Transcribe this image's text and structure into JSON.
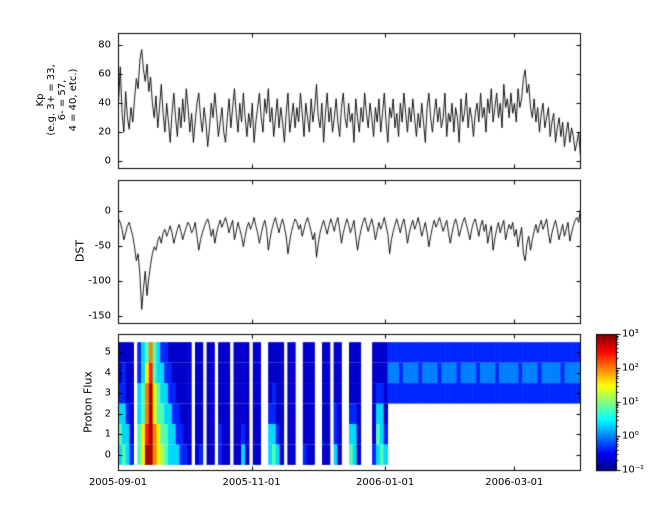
{
  "figure": {
    "background": "#ffffff",
    "line_color": "#000000"
  },
  "xaxis": {
    "range_days": [
      0,
      211
    ],
    "tick_days": [
      0,
      61,
      122,
      181
    ],
    "tick_labels": [
      "2005-09-01",
      "2005-11-01",
      "2006-01-01",
      "2006-03-01"
    ],
    "xlabel": ""
  },
  "chart_data": [
    {
      "id": "kp",
      "type": "line",
      "ylabel_lines": [
        "Kp",
        "(e.g. 3+ = 33,",
        "6- = 57,",
        "4 = 40, etc.)"
      ],
      "ylabel": "Kp (e.g. 3+ = 33, 6- = 57, 4 = 40, etc.)",
      "ylim": [
        -5,
        88
      ],
      "yticks": [
        0,
        20,
        40,
        60,
        80
      ],
      "values": [
        40,
        65,
        33,
        20,
        48,
        30,
        22,
        37,
        27,
        43,
        57,
        50,
        70,
        77,
        63,
        55,
        67,
        48,
        58,
        40,
        30,
        45,
        23,
        37,
        53,
        33,
        20,
        40,
        27,
        13,
        33,
        47,
        30,
        17,
        37,
        23,
        43,
        27,
        50,
        37,
        20,
        33,
        13,
        27,
        40,
        47,
        30,
        20,
        37,
        27,
        10,
        23,
        40,
        30,
        47,
        33,
        17,
        27,
        37,
        20,
        13,
        30,
        43,
        23,
        37,
        50,
        33,
        20,
        40,
        27,
        47,
        30,
        17,
        33,
        23,
        40,
        13,
        27,
        37,
        47,
        30,
        20,
        43,
        33,
        50,
        27,
        37,
        17,
        30,
        43,
        23,
        37,
        27,
        13,
        33,
        47,
        20,
        30,
        40,
        23,
        37,
        27,
        47,
        33,
        17,
        40,
        30,
        20,
        43,
        27,
        37,
        53,
        30,
        23,
        40,
        13,
        33,
        47,
        27,
        37,
        20,
        30,
        43,
        27,
        17,
        37,
        47,
        30,
        23,
        40,
        27,
        33,
        13,
        43,
        30,
        20,
        37,
        27,
        47,
        33,
        23,
        40,
        30,
        17,
        37,
        27,
        43,
        20,
        33,
        47,
        27,
        13,
        37,
        30,
        43,
        23,
        33,
        17,
        40,
        27,
        47,
        33,
        20,
        37,
        27,
        43,
        30,
        17,
        33,
        23,
        40,
        27,
        13,
        37,
        47,
        30,
        20,
        33,
        43,
        27,
        37,
        23,
        30,
        47,
        17,
        33,
        27,
        40,
        20,
        37,
        30,
        13,
        43,
        27,
        33,
        47,
        23,
        37,
        30,
        17,
        33,
        40,
        27,
        47,
        30,
        37,
        20,
        43,
        33,
        50,
        27,
        37,
        47,
        30,
        40,
        23,
        53,
        37,
        43,
        30,
        47,
        33,
        40,
        27,
        50,
        37,
        43,
        57,
        63,
        47,
        53,
        37,
        30,
        43,
        27,
        37,
        20,
        33,
        40,
        23,
        30,
        37,
        17,
        27,
        33,
        13,
        23,
        30,
        17,
        27,
        10,
        20,
        27,
        13,
        23,
        17,
        7,
        13,
        20,
        3
      ]
    },
    {
      "id": "dst",
      "type": "line",
      "ylabel": "DST",
      "ylim": [
        -160,
        45
      ],
      "yticks": [
        0,
        -50,
        -100,
        -150
      ],
      "values": [
        -10,
        -15,
        -25,
        -40,
        -30,
        -20,
        -15,
        -25,
        -35,
        -50,
        -70,
        -60,
        -90,
        -140,
        -110,
        -85,
        -120,
        -95,
        -75,
        -60,
        -50,
        -55,
        -42,
        -35,
        -45,
        -30,
        -25,
        -35,
        -28,
        -20,
        -30,
        -45,
        -35,
        -25,
        -18,
        -28,
        -40,
        -30,
        -22,
        -15,
        -20,
        -30,
        -25,
        -15,
        -35,
        -55,
        -40,
        -30,
        -22,
        -15,
        -10,
        -20,
        -35,
        -25,
        -45,
        -30,
        -20,
        -12,
        -22,
        -15,
        -8,
        -18,
        -30,
        -20,
        -12,
        -40,
        -28,
        -15,
        -25,
        -35,
        -50,
        -35,
        -22,
        -15,
        -25,
        -18,
        -8,
        -20,
        -30,
        -45,
        -32,
        -20,
        -12,
        -25,
        -55,
        -38,
        -25,
        -15,
        -8,
        -20,
        -30,
        -18,
        -10,
        -22,
        -35,
        -60,
        -42,
        -28,
        -18,
        -10,
        -15,
        -25,
        -18,
        -35,
        -25,
        -15,
        -8,
        -18,
        -28,
        -40,
        -30,
        -65,
        -45,
        -30,
        -20,
        -12,
        -22,
        -32,
        -20,
        -10,
        -18,
        -28,
        -15,
        -8,
        -25,
        -45,
        -30,
        -20,
        -10,
        -18,
        -30,
        -22,
        -12,
        -35,
        -55,
        -38,
        -25,
        -15,
        -8,
        -18,
        -28,
        -18,
        -10,
        -22,
        -40,
        -28,
        -15,
        -25,
        -18,
        -8,
        -20,
        -32,
        -60,
        -40,
        -28,
        -18,
        -10,
        -20,
        -30,
        -18,
        -10,
        -25,
        -45,
        -30,
        -20,
        -12,
        -25,
        -18,
        -8,
        -20,
        -35,
        -25,
        -15,
        -30,
        -50,
        -35,
        -22,
        -12,
        -22,
        -15,
        -8,
        -18,
        -28,
        -20,
        -12,
        -30,
        -45,
        -30,
        -18,
        -10,
        -20,
        -35,
        -25,
        -15,
        -8,
        -18,
        -28,
        -40,
        -25,
        -15,
        -10,
        -22,
        -35,
        -20,
        -12,
        -28,
        -18,
        -45,
        -30,
        -20,
        -55,
        -38,
        -25,
        -15,
        -30,
        -20,
        -12,
        -40,
        -28,
        -18,
        -25,
        -15,
        -35,
        -25,
        -50,
        -35,
        -22,
        -60,
        -70,
        -45,
        -35,
        -55,
        -40,
        -28,
        -18,
        -30,
        -20,
        -12,
        -25,
        -18,
        -10,
        -30,
        -45,
        -30,
        -20,
        -12,
        -25,
        -40,
        -28,
        -18,
        -35,
        -25,
        -15,
        -42,
        -30,
        -20,
        -12,
        -8,
        -15,
        5
      ]
    },
    {
      "id": "proton_flux",
      "type": "heatmap",
      "ylabel": "Proton Flux",
      "ylim": [
        -0.75,
        5.9
      ],
      "yticks": [
        0,
        1,
        2,
        3,
        4,
        5
      ],
      "colormap": "jet",
      "log10_flux_range": [
        -1,
        3
      ],
      "encoding": {
        ".": null,
        "B": -0.7,
        "b": -0.35,
        "c": 0.0,
        "C": 0.35,
        "G": 0.8,
        "g": 1.15,
        "Y": 1.55,
        "O": 2.0,
        "r": 2.4,
        "R": 2.85
      },
      "columns": [
        "CGCbBB",
        "GCCbbB",
        "CCbBBB",
        "bBBBBB",
        "......",
        "GGCCbb",
        "YYGGCC",
        "RrOOYG",
        "RRRRrO",
        "OOYYGG",
        "YYGGCC",
        "gGGCCb",
        "GGCCbb",
        "CCCbbB",
        "CCbbBB",
        "CbbBBB",
        "bbBBBB",
        "bBBBBB",
        "BBBBBB",
        "......",
        "BBBBBB",
        "bBBBBB",
        "......",
        "BBBBBB",
        "BBBBBB",
        "......",
        "bbBBBB",
        "BBBBBB",
        "BBBBBB",
        "......",
        "BBBBBB",
        "BBBBBB",
        "CbBBBB",
        "BBBBBB",
        "......",
        "BBBBBB",
        "BBBBBB",
        "......",
        "......",
        "CCbBBB",
        "GCbbBB",
        "CbBBBB",
        "BBBBBB",
        "......",
        "BBBBBB",
        "BBBBBB",
        "......",
        "......",
        "bBBBBB",
        "BBBBBB",
        "BBBBBB",
        "......",
        "......",
        "BBBBBB",
        "BBBBBB",
        "......",
        "CbbBBB",
        "BBBBBB",
        "......",
        "......",
        "GCbBBB",
        "CCbBBB",
        "BBBBBB",
        "......",
        "......",
        "......",
        "bBBBBB",
        "CGCbBB",
        "GCCbBB",
        "CbBBBB",
        "...bcb",
        "...bcb",
        "...bcb",
        "...bbb",
        "...bcb",
        "...bcb",
        "...bcb",
        "...bcb",
        "...bbb",
        "...bcb",
        "...bcb",
        "...bcb",
        "...bcb",
        "...bbb",
        "...bcb",
        "...bcb",
        "...bcb",
        "...bcb",
        "...bbb",
        "...bcb",
        "...bcb",
        "...bcb",
        "...bcb",
        "...bbb",
        "...bcb",
        "...bcb",
        "...bcb",
        "...bcb",
        "...bbb",
        "...bcb",
        "...bcb",
        "...bcb",
        "...bcb",
        "...bcb",
        "...bbb",
        "...bcb",
        "...bcb",
        "...bcb",
        "...bcb",
        "...bbb",
        "...bcb",
        "...bcb",
        "...bcb",
        "...bcb",
        "...bcb",
        "...bbb",
        "...bcb",
        "...bcb",
        "...bcb",
        "...bcb"
      ],
      "colorbar": {
        "scale": "log",
        "range_log10": [
          -1,
          3
        ],
        "tick_exponents": [
          3,
          2,
          1,
          0,
          -1
        ],
        "tick_labels": [
          "10³",
          "10²",
          "10¹",
          "10⁰",
          "10⁻¹"
        ]
      }
    }
  ]
}
